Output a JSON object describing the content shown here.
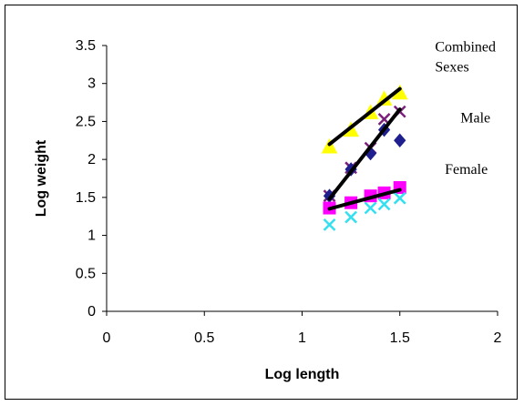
{
  "chart_data": {
    "type": "scatter",
    "xlabel": "Log length",
    "ylabel": "Log weight",
    "xlim": [
      0,
      2
    ],
    "ylim": [
      0,
      3.5
    ],
    "x_ticks": [
      "0",
      "0.5",
      "1",
      "1.5",
      "2"
    ],
    "y_ticks": [
      "0",
      "0.5",
      "1",
      "1.5",
      "2",
      "2.5",
      "3",
      "3.5"
    ],
    "grid": false,
    "legend": "none",
    "series": [
      {
        "marker": "triangle",
        "color": "#ffff00",
        "points": [
          [
            1.14,
            2.17
          ],
          [
            1.25,
            2.39
          ],
          [
            1.35,
            2.62
          ],
          [
            1.42,
            2.8
          ],
          [
            1.5,
            2.88
          ]
        ]
      },
      {
        "marker": "x",
        "color": "#7b1f7b",
        "points": [
          [
            1.14,
            1.52
          ],
          [
            1.25,
            1.89
          ],
          [
            1.35,
            2.15
          ],
          [
            1.42,
            2.53
          ],
          [
            1.5,
            2.63
          ]
        ]
      },
      {
        "marker": "diamond",
        "color": "#1f1f8f",
        "points": [
          [
            1.14,
            1.52
          ],
          [
            1.25,
            1.87
          ],
          [
            1.35,
            2.08
          ],
          [
            1.42,
            2.39
          ],
          [
            1.5,
            2.25
          ]
        ]
      },
      {
        "marker": "square",
        "color": "#ff00ff",
        "points": [
          [
            1.14,
            1.36
          ],
          [
            1.25,
            1.43
          ],
          [
            1.35,
            1.52
          ],
          [
            1.42,
            1.56
          ],
          [
            1.5,
            1.63
          ]
        ]
      },
      {
        "marker": "x",
        "color": "#33e0f0",
        "points": [
          [
            1.14,
            1.14
          ],
          [
            1.25,
            1.24
          ],
          [
            1.35,
            1.36
          ],
          [
            1.42,
            1.41
          ],
          [
            1.5,
            1.49
          ]
        ]
      }
    ],
    "trendlines": [
      {
        "color": "#000000",
        "points": [
          [
            1.14,
            2.2
          ],
          [
            1.5,
            2.93
          ]
        ]
      },
      {
        "color": "#000000",
        "points": [
          [
            1.14,
            1.48
          ],
          [
            1.5,
            2.66
          ]
        ]
      },
      {
        "color": "#000000",
        "points": [
          [
            1.14,
            1.35
          ],
          [
            1.5,
            1.6
          ]
        ]
      }
    ],
    "annotations": [
      {
        "lines": [
          "Combined",
          "Sexes"
        ],
        "x": 1.68,
        "y": 3.42
      },
      {
        "lines": [
          "Male"
        ],
        "x": 1.81,
        "y": 2.49
      },
      {
        "lines": [
          "Female"
        ],
        "x": 1.73,
        "y": 1.81
      }
    ]
  }
}
